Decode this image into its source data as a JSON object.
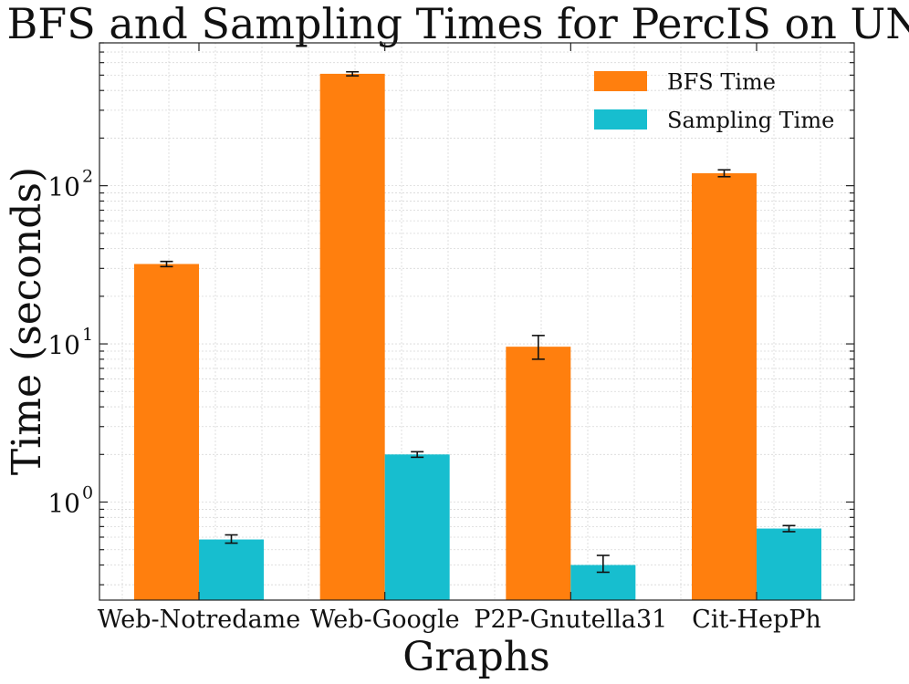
{
  "chart_data": {
    "type": "bar",
    "title": "BFS and Sampling Times for PercIS on UN",
    "xlabel": "Graphs",
    "ylabel": "Time (seconds)",
    "yscale": "log",
    "ylim": [
      0.24,
      800
    ],
    "yticks": [
      {
        "value": 1,
        "base": "10",
        "exp": "0"
      },
      {
        "value": 10,
        "base": "10",
        "exp": "1"
      },
      {
        "value": 100,
        "base": "10",
        "exp": "2"
      }
    ],
    "categories": [
      "Web-Notredame",
      "Web-Google",
      "P2P-Gnutella31",
      "Cit-HepPh"
    ],
    "series": [
      {
        "name": "BFS Time",
        "color": "#ff7f0e",
        "values": [
          32,
          510,
          9.6,
          120
        ],
        "err_low": [
          30.8,
          495,
          8.0,
          114
        ],
        "err_high": [
          33.2,
          525,
          11.3,
          126
        ]
      },
      {
        "name": "Sampling Time",
        "color": "#17becf",
        "values": [
          0.58,
          2.0,
          0.4,
          0.68
        ],
        "err_low": [
          0.55,
          1.92,
          0.36,
          0.65
        ],
        "err_high": [
          0.62,
          2.08,
          0.46,
          0.71
        ]
      }
    ],
    "grid": true,
    "legend_position": "top-right"
  }
}
